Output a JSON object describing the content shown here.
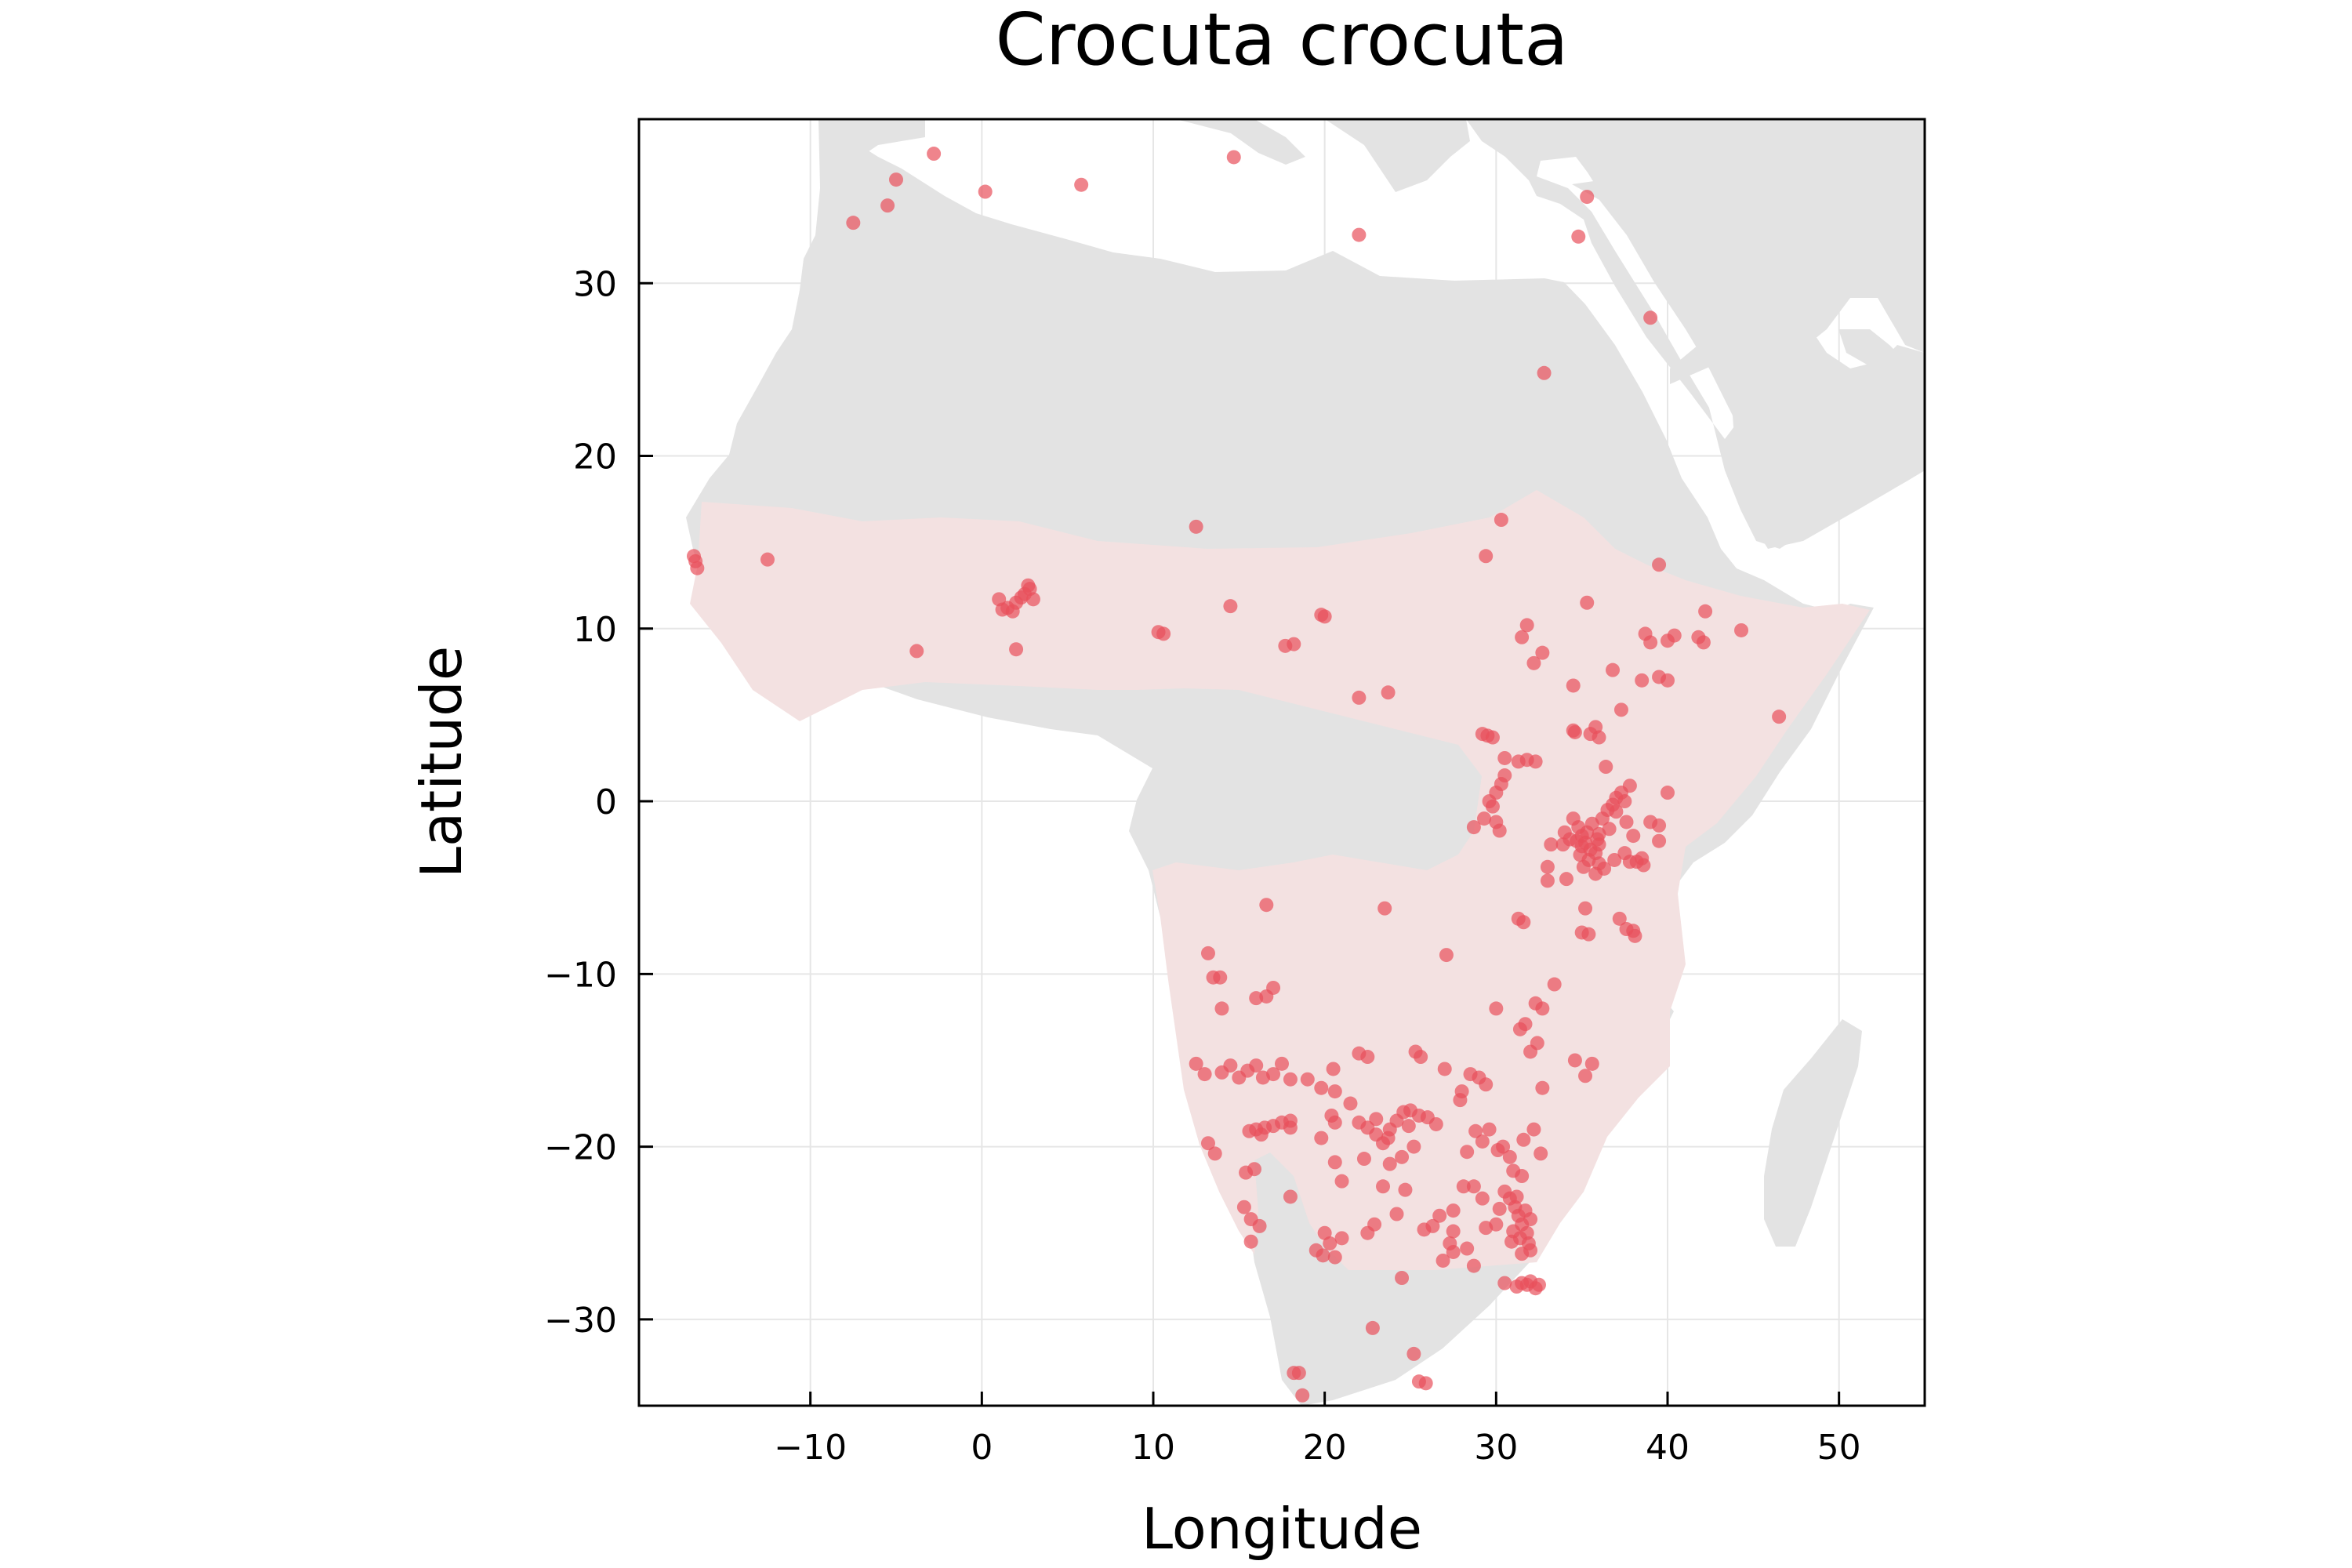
{
  "chart_data": {
    "type": "scatter",
    "title": "Crocuta crocuta",
    "xlabel": "Longitude",
    "ylabel": "Latitude",
    "xlim": [
      -20,
      55
    ],
    "ylim": [
      -35,
      39.5
    ],
    "xticks": [
      -10,
      0,
      10,
      20,
      30,
      40,
      50
    ],
    "yticks": [
      -30,
      -20,
      -10,
      0,
      10,
      20,
      30
    ],
    "xtick_labels": [
      "−10",
      "0",
      "10",
      "20",
      "30",
      "40",
      "50"
    ],
    "ytick_labels": [
      "−30",
      "−20",
      "−10",
      "0",
      "10",
      "20",
      "30"
    ],
    "grid": true,
    "legend": "none",
    "colors": {
      "points": "#e8505b",
      "land": "#e3e3e3",
      "range": "#f3e1e1",
      "grid": "#e6e6e6"
    },
    "series": [
      {
        "points": [
          [
            -7.5,
            33.5
          ],
          [
            -5.5,
            34.5
          ],
          [
            -5.0,
            36.0
          ],
          [
            -2.8,
            37.5
          ],
          [
            0.2,
            35.3
          ],
          [
            5.8,
            35.7
          ],
          [
            14.7,
            37.3
          ],
          [
            22.0,
            32.8
          ],
          [
            34.8,
            32.7
          ],
          [
            35.3,
            35.0
          ],
          [
            39.0,
            28.0
          ],
          [
            32.8,
            24.8
          ],
          [
            -16.8,
            14.2
          ],
          [
            -16.6,
            13.5
          ],
          [
            -16.7,
            13.9
          ],
          [
            -12.5,
            14.0
          ],
          [
            -3.8,
            8.7
          ],
          [
            1.0,
            11.7
          ],
          [
            1.5,
            11.2
          ],
          [
            2.0,
            11.5
          ],
          [
            2.5,
            12.0
          ],
          [
            2.8,
            12.3
          ],
          [
            3.0,
            11.7
          ],
          [
            1.8,
            11.0
          ],
          [
            2.3,
            11.8
          ],
          [
            2.7,
            12.5
          ],
          [
            1.2,
            11.1
          ],
          [
            2.0,
            8.8
          ],
          [
            10.3,
            9.8
          ],
          [
            10.6,
            9.7
          ],
          [
            14.5,
            11.3
          ],
          [
            12.5,
            15.9
          ],
          [
            17.7,
            9.0
          ],
          [
            18.2,
            9.1
          ],
          [
            19.8,
            10.8
          ],
          [
            20.0,
            10.7
          ],
          [
            22.0,
            6.0
          ],
          [
            23.7,
            6.3
          ],
          [
            29.4,
            14.2
          ],
          [
            30.3,
            16.3
          ],
          [
            31.8,
            10.2
          ],
          [
            31.5,
            9.5
          ],
          [
            32.2,
            8.0
          ],
          [
            32.7,
            8.6
          ],
          [
            35.3,
            11.5
          ],
          [
            34.5,
            6.7
          ],
          [
            36.8,
            7.6
          ],
          [
            37.3,
            5.3
          ],
          [
            38.5,
            7.0
          ],
          [
            38.7,
            9.7
          ],
          [
            39.0,
            9.2
          ],
          [
            39.5,
            7.2
          ],
          [
            40.0,
            9.3
          ],
          [
            40.4,
            9.6
          ],
          [
            40.0,
            7.0
          ],
          [
            39.5,
            13.7
          ],
          [
            41.8,
            9.5
          ],
          [
            42.1,
            9.2
          ],
          [
            42.2,
            11.0
          ],
          [
            44.3,
            9.9
          ],
          [
            46.5,
            4.9
          ],
          [
            34.5,
            4.1
          ],
          [
            34.6,
            4.0
          ],
          [
            35.8,
            4.3
          ],
          [
            36.0,
            3.7
          ],
          [
            35.5,
            3.9
          ],
          [
            29.2,
            3.9
          ],
          [
            29.5,
            3.8
          ],
          [
            29.8,
            3.7
          ],
          [
            30.5,
            2.5
          ],
          [
            31.3,
            2.3
          ],
          [
            31.8,
            2.4
          ],
          [
            32.3,
            2.3
          ],
          [
            30.5,
            1.5
          ],
          [
            30.3,
            1.0
          ],
          [
            30.0,
            0.5
          ],
          [
            29.6,
            0.0
          ],
          [
            29.8,
            -0.3
          ],
          [
            29.3,
            -1.0
          ],
          [
            30.0,
            -1.2
          ],
          [
            28.7,
            -1.5
          ],
          [
            30.2,
            -1.7
          ],
          [
            34.5,
            -1.0
          ],
          [
            34.8,
            -1.5
          ],
          [
            35.0,
            -2.0
          ],
          [
            35.2,
            -2.4
          ],
          [
            35.5,
            -2.8
          ],
          [
            35.8,
            -3.0
          ],
          [
            36.0,
            -2.5
          ],
          [
            35.0,
            -2.6
          ],
          [
            34.7,
            -2.3
          ],
          [
            35.3,
            -1.8
          ],
          [
            35.6,
            -1.3
          ],
          [
            36.2,
            -1.0
          ],
          [
            36.5,
            -0.5
          ],
          [
            36.8,
            -0.2
          ],
          [
            37.0,
            0.2
          ],
          [
            37.3,
            0.5
          ],
          [
            37.5,
            0.0
          ],
          [
            37.0,
            -0.6
          ],
          [
            36.6,
            -1.6
          ],
          [
            36.0,
            -1.9
          ],
          [
            35.9,
            -2.2
          ],
          [
            34.9,
            -3.1
          ],
          [
            35.4,
            -3.4
          ],
          [
            36.0,
            -3.6
          ],
          [
            36.3,
            -3.9
          ],
          [
            35.8,
            -4.2
          ],
          [
            35.1,
            -3.8
          ],
          [
            34.3,
            -2.2
          ],
          [
            34.0,
            -1.8
          ],
          [
            33.9,
            -2.5
          ],
          [
            33.2,
            -2.5
          ],
          [
            33.0,
            -3.8
          ],
          [
            33.0,
            -4.6
          ],
          [
            34.1,
            -4.5
          ],
          [
            36.9,
            -3.4
          ],
          [
            37.5,
            -3.0
          ],
          [
            37.8,
            -3.5
          ],
          [
            38.2,
            -3.5
          ],
          [
            38.5,
            -3.3
          ],
          [
            38.6,
            -3.7
          ],
          [
            39.5,
            -2.3
          ],
          [
            39.5,
            -1.4
          ],
          [
            39.0,
            -1.2
          ],
          [
            40.0,
            0.5
          ],
          [
            38.0,
            -2.0
          ],
          [
            37.6,
            -1.2
          ],
          [
            36.4,
            2.0
          ],
          [
            37.8,
            0.9
          ],
          [
            37.2,
            -6.8
          ],
          [
            37.6,
            -7.4
          ],
          [
            38.0,
            -7.5
          ],
          [
            38.1,
            -7.8
          ],
          [
            35.0,
            -7.6
          ],
          [
            35.4,
            -7.7
          ],
          [
            35.2,
            -6.2
          ],
          [
            31.3,
            -6.8
          ],
          [
            31.6,
            -7.0
          ],
          [
            33.4,
            -10.6
          ],
          [
            32.7,
            -12.0
          ],
          [
            32.3,
            -11.7
          ],
          [
            31.7,
            -12.9
          ],
          [
            31.4,
            -13.2
          ],
          [
            30.0,
            -12.0
          ],
          [
            32.4,
            -14.0
          ],
          [
            32.0,
            -14.5
          ],
          [
            34.6,
            -15.0
          ],
          [
            35.2,
            -15.9
          ],
          [
            35.6,
            -15.2
          ],
          [
            32.7,
            -16.6
          ],
          [
            27.1,
            -8.9
          ],
          [
            23.5,
            -6.2
          ],
          [
            16.6,
            -6.0
          ],
          [
            13.2,
            -8.8
          ],
          [
            13.5,
            -10.2
          ],
          [
            13.9,
            -10.2
          ],
          [
            14.0,
            -12.0
          ],
          [
            16.0,
            -11.4
          ],
          [
            16.6,
            -11.3
          ],
          [
            17.0,
            -10.8
          ],
          [
            12.5,
            -15.2
          ],
          [
            13.0,
            -15.8
          ],
          [
            14.0,
            -15.7
          ],
          [
            14.5,
            -15.3
          ],
          [
            15.0,
            -16.0
          ],
          [
            15.5,
            -15.6
          ],
          [
            16.0,
            -15.3
          ],
          [
            16.4,
            -16.0
          ],
          [
            17.0,
            -15.8
          ],
          [
            17.5,
            -15.2
          ],
          [
            18.0,
            -16.1
          ],
          [
            19.0,
            -16.1
          ],
          [
            19.8,
            -16.6
          ],
          [
            20.6,
            -16.8
          ],
          [
            20.5,
            -15.5
          ],
          [
            22.0,
            -14.6
          ],
          [
            22.5,
            -14.8
          ],
          [
            25.3,
            -14.5
          ],
          [
            25.6,
            -14.8
          ],
          [
            27.0,
            -15.5
          ],
          [
            28.5,
            -15.8
          ],
          [
            29.0,
            -16.0
          ],
          [
            29.4,
            -16.4
          ],
          [
            28.0,
            -16.8
          ],
          [
            27.9,
            -17.3
          ],
          [
            20.4,
            -18.2
          ],
          [
            20.6,
            -18.6
          ],
          [
            21.5,
            -17.5
          ],
          [
            22.0,
            -18.6
          ],
          [
            22.5,
            -18.9
          ],
          [
            23.0,
            -19.3
          ],
          [
            23.4,
            -19.8
          ],
          [
            23.8,
            -19.0
          ],
          [
            24.2,
            -18.5
          ],
          [
            24.6,
            -18.0
          ],
          [
            25.0,
            -17.9
          ],
          [
            25.5,
            -18.2
          ],
          [
            24.9,
            -18.8
          ],
          [
            23.7,
            -19.5
          ],
          [
            23.0,
            -18.4
          ],
          [
            26.0,
            -18.3
          ],
          [
            26.5,
            -18.7
          ],
          [
            25.2,
            -20.0
          ],
          [
            24.5,
            -20.6
          ],
          [
            23.8,
            -21.0
          ],
          [
            22.3,
            -20.7
          ],
          [
            20.6,
            -20.9
          ],
          [
            19.8,
            -19.5
          ],
          [
            21.0,
            -22.0
          ],
          [
            18.0,
            -18.9
          ],
          [
            16.0,
            -19.0
          ],
          [
            16.5,
            -18.9
          ],
          [
            17.0,
            -18.8
          ],
          [
            17.5,
            -18.6
          ],
          [
            18.0,
            -18.5
          ],
          [
            15.6,
            -19.1
          ],
          [
            16.3,
            -19.3
          ],
          [
            13.2,
            -19.8
          ],
          [
            13.6,
            -20.4
          ],
          [
            15.4,
            -21.5
          ],
          [
            15.9,
            -21.3
          ],
          [
            15.7,
            -24.2
          ],
          [
            16.2,
            -24.6
          ],
          [
            15.7,
            -25.5
          ],
          [
            15.3,
            -23.5
          ],
          [
            18.0,
            -22.9
          ],
          [
            28.3,
            -20.3
          ],
          [
            28.8,
            -19.1
          ],
          [
            29.2,
            -19.7
          ],
          [
            29.6,
            -19.0
          ],
          [
            30.1,
            -20.2
          ],
          [
            30.4,
            -20.0
          ],
          [
            30.8,
            -20.6
          ],
          [
            31.5,
            -21.7
          ],
          [
            30.5,
            -22.6
          ],
          [
            31.6,
            -19.6
          ],
          [
            32.2,
            -19.0
          ],
          [
            32.6,
            -20.4
          ],
          [
            31.0,
            -21.4
          ],
          [
            30.8,
            -23.0
          ],
          [
            31.1,
            -23.5
          ],
          [
            31.3,
            -24.0
          ],
          [
            31.5,
            -24.5
          ],
          [
            31.0,
            -24.9
          ],
          [
            31.4,
            -25.3
          ],
          [
            31.8,
            -25.0
          ],
          [
            32.0,
            -24.2
          ],
          [
            31.7,
            -23.7
          ],
          [
            31.2,
            -22.9
          ],
          [
            31.9,
            -25.6
          ],
          [
            31.5,
            -26.2
          ],
          [
            32.0,
            -26.0
          ],
          [
            30.2,
            -23.6
          ],
          [
            30.0,
            -24.5
          ],
          [
            30.9,
            -25.5
          ],
          [
            31.8,
            -28.0
          ],
          [
            32.0,
            -27.8
          ],
          [
            31.5,
            -27.9
          ],
          [
            31.2,
            -28.1
          ],
          [
            32.3,
            -28.2
          ],
          [
            32.5,
            -28.0
          ],
          [
            30.5,
            -27.9
          ],
          [
            27.5,
            -23.7
          ],
          [
            28.1,
            -22.3
          ],
          [
            28.7,
            -22.3
          ],
          [
            29.2,
            -23.0
          ],
          [
            29.4,
            -24.7
          ],
          [
            27.5,
            -24.9
          ],
          [
            26.7,
            -24.0
          ],
          [
            25.8,
            -24.8
          ],
          [
            26.3,
            -24.6
          ],
          [
            27.3,
            -25.6
          ],
          [
            27.5,
            -26.1
          ],
          [
            26.9,
            -26.6
          ],
          [
            28.3,
            -25.9
          ],
          [
            28.7,
            -26.9
          ],
          [
            24.5,
            -27.6
          ],
          [
            22.5,
            -25.0
          ],
          [
            22.9,
            -24.5
          ],
          [
            24.2,
            -23.9
          ],
          [
            24.7,
            -22.5
          ],
          [
            23.4,
            -22.3
          ],
          [
            20.0,
            -25.0
          ],
          [
            20.3,
            -25.6
          ],
          [
            20.6,
            -26.4
          ],
          [
            19.9,
            -26.3
          ],
          [
            21.0,
            -25.3
          ],
          [
            19.5,
            -26.0
          ],
          [
            22.8,
            -30.5
          ],
          [
            25.2,
            -32.0
          ],
          [
            25.5,
            -33.6
          ],
          [
            25.9,
            -33.7
          ],
          [
            18.2,
            -33.1
          ],
          [
            18.5,
            -33.1
          ],
          [
            18.7,
            -34.4
          ]
        ]
      }
    ]
  }
}
